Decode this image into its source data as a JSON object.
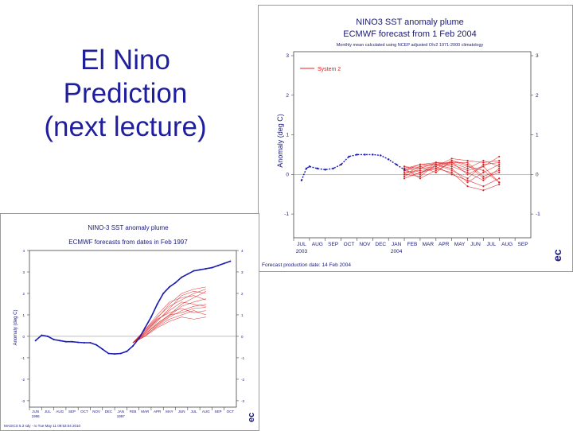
{
  "slide": {
    "title_lines": [
      "El Nino",
      "Prediction",
      "(next lecture)"
    ]
  },
  "colors": {
    "title": "#1f1f9e",
    "title_chart": "#1a1a7a",
    "observed": "#1a1ab0",
    "forecast": "#e02020",
    "axis": "#444444",
    "zero_line": "#999999"
  },
  "chart_data": [
    {
      "type": "line",
      "title": "NINO3 SST anomaly plume",
      "subtitle": "ECMWF forecast from 1 Feb 2004",
      "caption": "Monthly mean calculated using NCEP adjusted OIv2 1971-2000 climatology",
      "ylabel": "Anomaly (deg C)",
      "ylim": [
        -1.6,
        3.1
      ],
      "yticks": [
        3,
        2,
        1,
        0,
        -1
      ],
      "ytick_labels": [
        "3",
        "2",
        "1",
        "0",
        "-1"
      ],
      "categories": [
        "JUL",
        "AUG",
        "SEP",
        "OCT",
        "NOV",
        "DEC",
        "JAN",
        "FEB",
        "MAR",
        "APR",
        "MAY",
        "JUN",
        "JUL",
        "AUG",
        "SEP"
      ],
      "year_labels": [
        {
          "label": "2003",
          "index": 0
        },
        {
          "label": "2004",
          "index": 6
        }
      ],
      "legend": [
        "System 2"
      ],
      "footer": "Forecast production date: 14 Feb 2004",
      "logo_text": "ec",
      "observed": {
        "name": "Observed",
        "x": [
          0,
          0.3,
          0.5,
          1,
          1.5,
          2,
          2.5,
          3,
          3.5,
          4,
          4.5,
          5,
          5.5,
          6,
          6.5
        ],
        "values": [
          -0.15,
          0.15,
          0.2,
          0.15,
          0.12,
          0.15,
          0.25,
          0.45,
          0.5,
          0.5,
          0.5,
          0.48,
          0.38,
          0.25,
          0.12
        ]
      },
      "forecast": {
        "name": "System 2",
        "x_start": 6.5,
        "members": [
          [
            0.15,
            -0.1,
            0.1,
            0.3,
            0.0,
            0.2,
            -0.2
          ],
          [
            0.1,
            0.2,
            0.05,
            0.35,
            0.25,
            -0.1,
            0.05
          ],
          [
            0.0,
            -0.05,
            0.25,
            0.15,
            -0.2,
            0.05,
            0.25
          ],
          [
            0.2,
            0.05,
            0.2,
            0.4,
            0.35,
            0.3,
            0.35
          ],
          [
            -0.05,
            0.15,
            0.2,
            0.0,
            -0.15,
            -0.3,
            -0.1
          ],
          [
            0.15,
            0.25,
            0.3,
            0.25,
            0.1,
            0.2,
            0.45
          ],
          [
            0.1,
            0.0,
            0.3,
            0.2,
            0.05,
            -0.15,
            0.15
          ],
          [
            0.05,
            0.1,
            0.15,
            0.35,
            0.2,
            0.1,
            -0.2
          ],
          [
            0.0,
            0.2,
            0.25,
            0.1,
            -0.1,
            0.25,
            0.3
          ],
          [
            0.2,
            0.15,
            0.3,
            0.3,
            0.3,
            -0.05,
            0.1
          ],
          [
            -0.1,
            0.05,
            0.15,
            0.05,
            -0.3,
            -0.4,
            -0.25
          ],
          [
            0.1,
            0.25,
            0.25,
            0.3,
            0.15,
            0.35,
            0.2
          ]
        ]
      }
    },
    {
      "type": "line",
      "title": "NINO-3 SST anomaly plume",
      "subtitle": "ECMWF forecasts from dates in Feb 1997",
      "ylabel": "Anomaly (deg C)",
      "ylim": [
        -3.3,
        4
      ],
      "yticks": [
        4,
        3,
        2,
        1,
        0,
        -1,
        -2,
        -3
      ],
      "ytick_labels": [
        "4",
        "3",
        "2",
        "1",
        "0",
        "-1",
        "-2",
        "-3"
      ],
      "categories": [
        "JUN",
        "JUL",
        "AUG",
        "SEP",
        "OCT",
        "NOV",
        "DEC",
        "JAN",
        "FEB",
        "MAR",
        "APR",
        "MAY",
        "JUN",
        "JUL",
        "AUG",
        "SEP",
        "OCT"
      ],
      "year_labels": [
        {
          "label": "1996",
          "index": 0
        },
        {
          "label": "1997",
          "index": 7
        }
      ],
      "footer": "MAGICS 5.3 sdy  - ro  Tue May 11 09:53:04 2010",
      "logo_text": "ec",
      "observed": {
        "name": "Observed",
        "x": [
          0,
          0.5,
          1,
          1.5,
          2,
          2.5,
          3,
          3.5,
          4,
          4.5,
          5,
          5.5,
          6,
          6.5,
          7,
          7.5,
          8,
          8.5,
          9,
          9.5,
          10,
          10.5,
          11,
          11.5,
          12,
          12.5,
          13,
          13.5,
          14,
          14.5,
          15,
          15.5,
          16
        ],
        "values": [
          -0.2,
          0.05,
          0.0,
          -0.15,
          -0.2,
          -0.25,
          -0.25,
          -0.28,
          -0.3,
          -0.3,
          -0.4,
          -0.6,
          -0.8,
          -0.82,
          -0.8,
          -0.7,
          -0.45,
          -0.1,
          0.4,
          0.9,
          1.5,
          2.0,
          2.3,
          2.5,
          2.75,
          2.9,
          3.05,
          3.1,
          3.15,
          3.2,
          3.3,
          3.4,
          3.5
        ]
      },
      "forecast": {
        "name": "Forecast",
        "x_start": 8,
        "members": [
          [
            -0.3,
            0.1,
            0.6,
            1.0,
            1.5,
            1.8,
            2.1
          ],
          [
            -0.3,
            0.3,
            0.9,
            1.4,
            1.7,
            2.0,
            2.2
          ],
          [
            -0.3,
            0.0,
            0.5,
            0.9,
            1.2,
            1.4,
            1.5
          ],
          [
            -0.3,
            0.2,
            0.8,
            1.1,
            1.3,
            1.1,
            1.2
          ],
          [
            -0.3,
            0.15,
            0.7,
            1.3,
            1.9,
            2.1,
            2.0
          ],
          [
            -0.3,
            0.05,
            0.45,
            0.8,
            1.0,
            1.2,
            1.0
          ],
          [
            -0.3,
            0.25,
            0.85,
            1.5,
            2.0,
            2.2,
            2.3
          ],
          [
            -0.3,
            0.1,
            0.55,
            0.95,
            1.4,
            1.6,
            1.75
          ],
          [
            -0.3,
            0.0,
            0.4,
            0.7,
            0.9,
            0.8,
            0.9
          ],
          [
            -0.3,
            0.2,
            0.75,
            1.2,
            1.6,
            1.5,
            1.4
          ],
          [
            -0.3,
            0.3,
            1.0,
            1.6,
            1.8,
            1.9,
            1.7
          ],
          [
            -0.3,
            0.1,
            0.6,
            1.0,
            1.1,
            1.3,
            1.35
          ]
        ]
      }
    }
  ]
}
